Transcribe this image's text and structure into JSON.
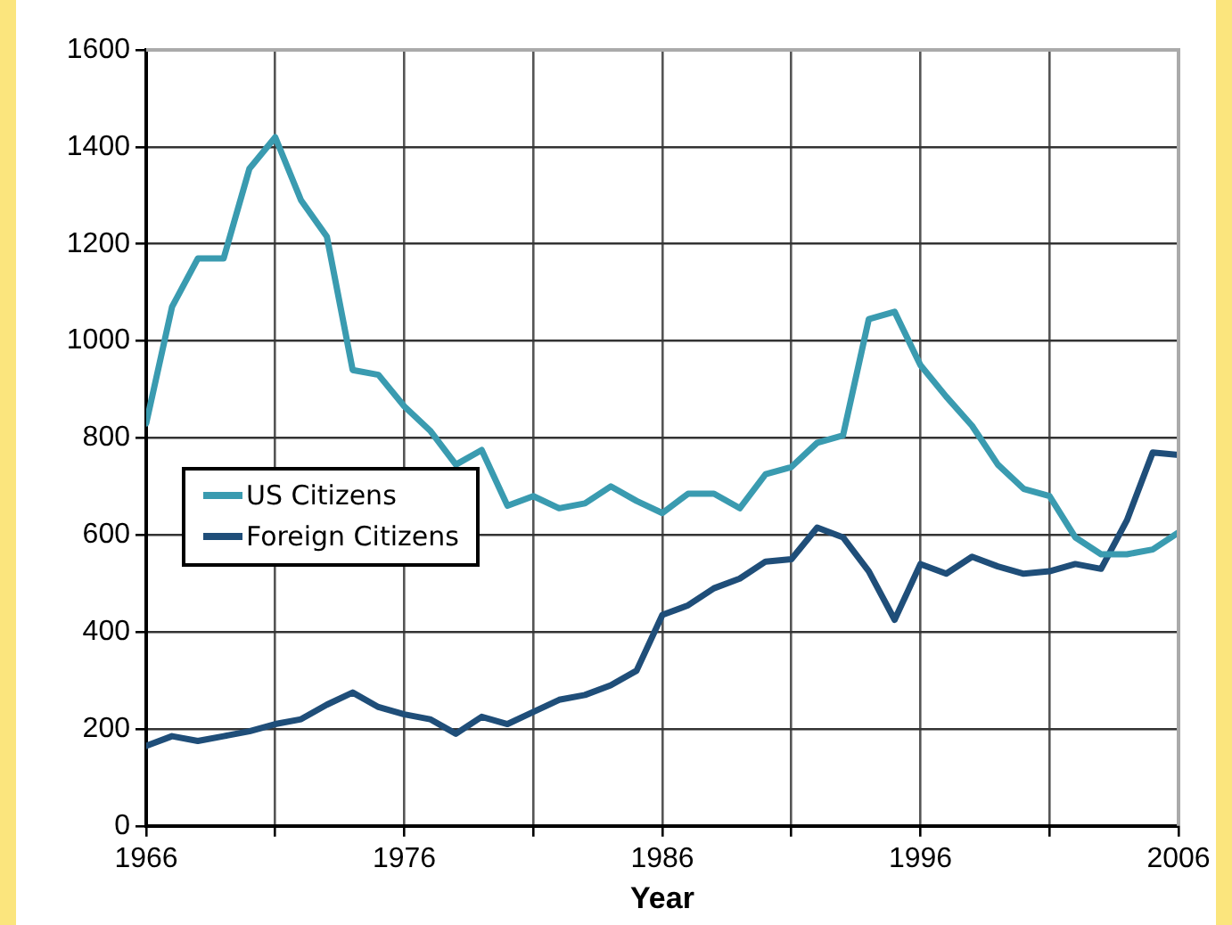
{
  "chart_data": {
    "type": "line",
    "xlabel": "Year",
    "x": [
      1966,
      1967,
      1968,
      1969,
      1970,
      1971,
      1972,
      1973,
      1974,
      1975,
      1976,
      1977,
      1978,
      1979,
      1980,
      1981,
      1982,
      1983,
      1984,
      1985,
      1986,
      1987,
      1988,
      1989,
      1990,
      1991,
      1992,
      1993,
      1994,
      1995,
      1996,
      1997,
      1998,
      1999,
      2000,
      2001,
      2002,
      2003,
      2004,
      2005,
      2006
    ],
    "series": [
      {
        "name": "US Citizens",
        "color": "#3a9bb0",
        "values": [
          830,
          1070,
          1170,
          1170,
          1355,
          1420,
          1290,
          1215,
          940,
          930,
          865,
          815,
          745,
          775,
          660,
          680,
          655,
          665,
          700,
          670,
          645,
          685,
          685,
          655,
          725,
          740,
          790,
          805,
          1045,
          1060,
          950,
          885,
          825,
          745,
          695,
          680,
          595,
          560,
          560,
          570,
          605
        ]
      },
      {
        "name": "Foreign Citizens",
        "color": "#1f4e79",
        "values": [
          165,
          185,
          175,
          185,
          195,
          210,
          220,
          250,
          275,
          245,
          230,
          220,
          190,
          225,
          210,
          235,
          260,
          270,
          290,
          320,
          435,
          455,
          490,
          510,
          545,
          550,
          615,
          595,
          525,
          425,
          540,
          520,
          555,
          535,
          520,
          525,
          540,
          530,
          630,
          770,
          765
        ]
      }
    ],
    "xlim": [
      1966,
      2006
    ],
    "xticks": [
      1966,
      {
        "value": 1971,
        "label": null
      },
      1976,
      {
        "value": 1981,
        "label": null
      },
      1986,
      {
        "value": 1991,
        "label": null
      },
      1996,
      {
        "value": 2001,
        "label": null
      },
      2006
    ],
    "ylim": [
      0,
      1600
    ],
    "yticks": [
      0,
      200,
      400,
      600,
      800,
      1000,
      1200,
      1400,
      1600
    ],
    "grid": true,
    "legend": "left",
    "marker": "none",
    "line_style": "solid"
  }
}
